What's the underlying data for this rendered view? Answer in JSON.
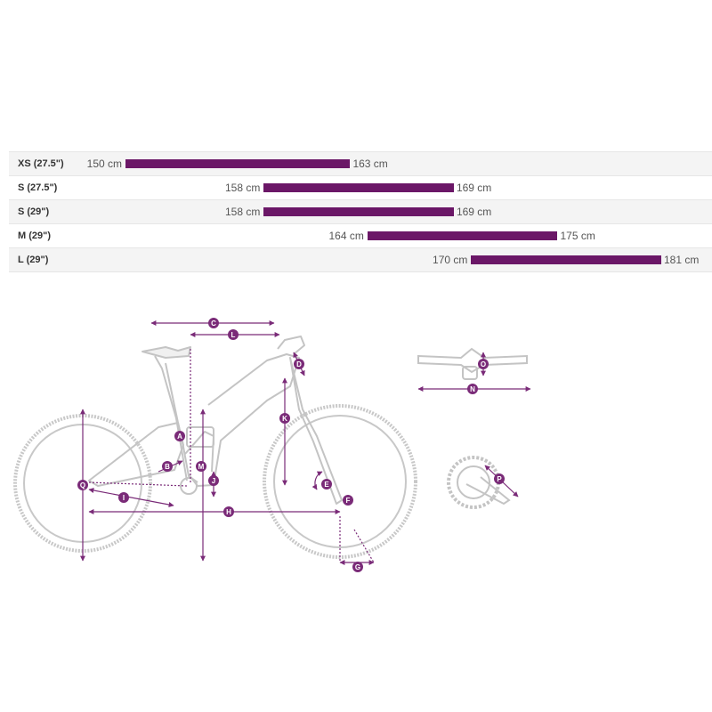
{
  "size_chart": {
    "rows": [
      {
        "size": "XS (27.5\")",
        "min": 150,
        "max": 163,
        "min_label": "150 cm",
        "max_label": "163 cm"
      },
      {
        "size": "S (27.5\")",
        "min": 158,
        "max": 169,
        "min_label": "158 cm",
        "max_label": "169 cm"
      },
      {
        "size": "S (29\")",
        "min": 158,
        "max": 169,
        "min_label": "158 cm",
        "max_label": "169 cm"
      },
      {
        "size": "M (29\")",
        "min": 164,
        "max": 175,
        "min_label": "164 cm",
        "max_label": "175 cm"
      },
      {
        "size": "L (29\")",
        "min": 170,
        "max": 181,
        "min_label": "170 cm",
        "max_label": "181 cm"
      }
    ],
    "range": [
      150,
      181
    ],
    "bar_color": "#6b1767"
  },
  "geometry_labels": [
    "A",
    "B",
    "C",
    "D",
    "E",
    "F",
    "G",
    "H",
    "I",
    "J",
    "K",
    "L",
    "M",
    "N",
    "O",
    "P",
    "Q"
  ],
  "colors": {
    "accent": "#7a2b78",
    "frame_line": "#c8c8c8"
  }
}
